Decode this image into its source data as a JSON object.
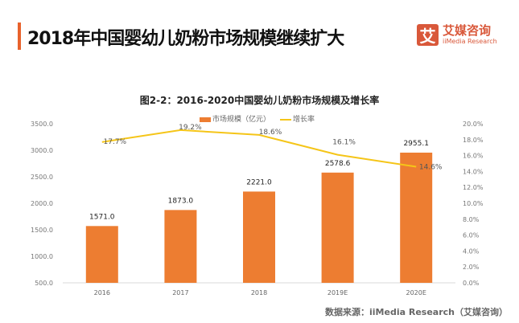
{
  "header": {
    "title": "2018年中国婴幼儿奶粉市场规模继续扩大",
    "logo_mark": "艾",
    "logo_cn": "艾媒咨询",
    "logo_en": "iiMedia Research"
  },
  "source": "数据来源：iiMedia Research（艾媒咨询）",
  "colors": {
    "bar": "#ed7d31",
    "line": "#f5c518",
    "accent": "#e8622c"
  },
  "chart_data": {
    "type": "bar",
    "title": "图2-2：2016-2020中国婴幼儿奶粉市场规模及增长率",
    "categories": [
      "2016",
      "2017",
      "2018",
      "2019E",
      "2020E"
    ],
    "series": [
      {
        "name": "市场规模（亿元）",
        "type": "bar",
        "axis": "left",
        "values": [
          1571.0,
          1873.0,
          2221.0,
          2578.6,
          2955.1
        ],
        "labels": [
          "1571.0",
          "1873.0",
          "2221.0",
          "2578.6",
          "2955.1"
        ]
      },
      {
        "name": "增长率",
        "type": "line",
        "axis": "right",
        "values": [
          17.7,
          19.2,
          18.6,
          16.1,
          14.6
        ],
        "labels": [
          "17.7%",
          "19.2%",
          "18.6%",
          "16.1%",
          "14.6%"
        ]
      }
    ],
    "ylim": [
      500,
      3500
    ],
    "yticks": [
      "500.0",
      "1000.0",
      "1500.0",
      "2000.0",
      "2500.0",
      "3000.0",
      "3500.0"
    ],
    "y2lim": [
      0,
      20
    ],
    "y2ticks": [
      "0.0%",
      "2.0%",
      "4.0%",
      "6.0%",
      "8.0%",
      "10.0%",
      "12.0%",
      "14.0%",
      "16.0%",
      "18.0%",
      "20.0%"
    ],
    "grid": false,
    "legend": "top"
  }
}
